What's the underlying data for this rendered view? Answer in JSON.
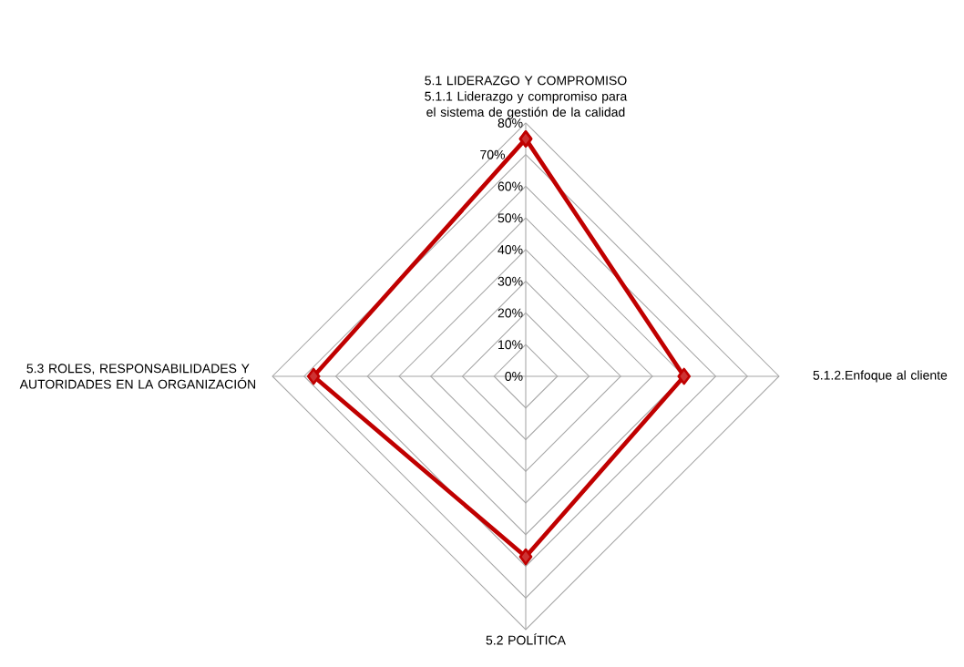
{
  "chart_data": {
    "type": "radar",
    "categories": [
      "5.1 LIDERAZGO Y COMPROMISO 5.1.1 Liderazgo y compromiso para el sistema de gestión de la calidad",
      "5.1.2.Enfoque al cliente",
      "5.2 POLÍTICA",
      "5.3 ROLES, RESPONSABILIDADES Y AUTORIDADES EN LA ORGANIZACIÓN"
    ],
    "series": [
      {
        "color": "#c00000",
        "values": [
          75,
          50,
          57,
          67
        ]
      }
    ],
    "ylim": [
      0,
      80
    ],
    "yticks": [
      {
        "value": 0,
        "label": "0%"
      },
      {
        "value": 10,
        "label": "10%"
      },
      {
        "value": 20,
        "label": "20%"
      },
      {
        "value": 30,
        "label": "30%"
      },
      {
        "value": 40,
        "label": "40%"
      },
      {
        "value": 50,
        "label": "50%"
      },
      {
        "value": 60,
        "label": "60%"
      },
      {
        "value": 70,
        "label": "70%"
      },
      {
        "value": 80,
        "label": "80%"
      }
    ],
    "grid": true,
    "marker": "diamond",
    "line_style": "solid"
  }
}
